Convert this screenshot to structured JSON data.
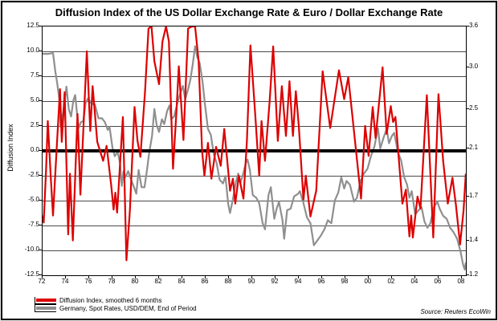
{
  "title": "Diffusion Index of the US Dollar Exchange Rate & Euro / Dollar Exchange Rate",
  "source_note": "Source: Reuters EcoWin",
  "left_axis": {
    "label": "Diffusion Index",
    "ticks": [
      "12.5",
      "10.0",
      "7.5",
      "5.0",
      "2.5",
      "0.0",
      "-2.5",
      "-5.0",
      "-7.5",
      "-10.0",
      "-12.5"
    ]
  },
  "right_axis": {
    "ticks": [
      "3.6",
      "3.0",
      "2.5",
      "2.1",
      "1.7",
      "1.4",
      "1.2"
    ],
    "values": [
      3.6,
      3.0,
      2.5,
      2.1,
      1.7,
      1.4,
      1.2
    ]
  },
  "x_axis": {
    "ticks": [
      "72",
      "74",
      "76",
      "78",
      "80",
      "82",
      "84",
      "86",
      "88",
      "90",
      "92",
      "94",
      "96",
      "98",
      "00",
      "02",
      "04",
      "06",
      "08"
    ],
    "years": [
      1972,
      1974,
      1976,
      1978,
      1980,
      1982,
      1984,
      1986,
      1988,
      1990,
      1992,
      1994,
      1996,
      1998,
      2000,
      2002,
      2004,
      2006,
      2008
    ]
  },
  "legend": [
    {
      "label": "Diffusion Index, smoothed 6 months",
      "color": "#dd0000"
    },
    {
      "label": "Germany, Spot Rates, USD/DEM, End of Period",
      "color": "#8f8f8f"
    }
  ],
  "colors": {
    "red_series": "#dd0000",
    "gray_series": "#8f8f8f",
    "gridline": "#4a4a4a",
    "zero_line": "#000000",
    "frame": "#000000"
  },
  "chart_data": {
    "type": "line",
    "title": "Diffusion Index of the US Dollar Exchange Rate & Euro / Dollar Exchange Rate",
    "xlim": [
      1972,
      2008.35
    ],
    "left_ylim": [
      -12.5,
      12.5
    ],
    "right_ylim": [
      1.2,
      3.6
    ],
    "right_scale": "log",
    "zero_line": true,
    "grid": "horizontal, every 2.5 units of left axis",
    "legend_position": "bottom-left",
    "series": [
      {
        "name": "Germany, Spot Rates, USD/DEM, End of Period",
        "axis": "right",
        "color": "#8f8f8f",
        "points": [
          [
            1972.0,
            3.19
          ],
          [
            1972.5,
            3.19
          ],
          [
            1972.9,
            3.2
          ],
          [
            1973.1,
            2.95
          ],
          [
            1973.25,
            2.81
          ],
          [
            1973.45,
            2.6
          ],
          [
            1973.55,
            2.31
          ],
          [
            1973.7,
            2.41
          ],
          [
            1973.9,
            2.58
          ],
          [
            1974.05,
            2.76
          ],
          [
            1974.25,
            2.5
          ],
          [
            1974.45,
            2.42
          ],
          [
            1974.65,
            2.6
          ],
          [
            1974.8,
            2.66
          ],
          [
            1974.95,
            2.46
          ],
          [
            1975.1,
            2.3
          ],
          [
            1975.3,
            2.36
          ],
          [
            1975.5,
            2.37
          ],
          [
            1975.7,
            2.57
          ],
          [
            1975.9,
            2.62
          ],
          [
            1976.2,
            2.56
          ],
          [
            1976.5,
            2.55
          ],
          [
            1976.8,
            2.4
          ],
          [
            1977.1,
            2.4
          ],
          [
            1977.35,
            2.36
          ],
          [
            1977.6,
            2.28
          ],
          [
            1977.75,
            2.31
          ],
          [
            1978.0,
            2.11
          ],
          [
            1978.2,
            2.03
          ],
          [
            1978.45,
            2.07
          ],
          [
            1978.65,
            1.97
          ],
          [
            1978.8,
            1.78
          ],
          [
            1978.95,
            1.9
          ],
          [
            1979.1,
            1.85
          ],
          [
            1979.35,
            1.9
          ],
          [
            1979.6,
            1.83
          ],
          [
            1979.85,
            1.77
          ],
          [
            1980.05,
            1.72
          ],
          [
            1980.25,
            1.91
          ],
          [
            1980.5,
            1.77
          ],
          [
            1980.75,
            1.77
          ],
          [
            1980.95,
            1.9
          ],
          [
            1981.15,
            2.06
          ],
          [
            1981.4,
            2.22
          ],
          [
            1981.6,
            2.5
          ],
          [
            1981.8,
            2.33
          ],
          [
            1982.0,
            2.26
          ],
          [
            1982.25,
            2.39
          ],
          [
            1982.45,
            2.34
          ],
          [
            1982.7,
            2.48
          ],
          [
            1982.9,
            2.54
          ],
          [
            1983.05,
            2.39
          ],
          [
            1983.3,
            2.42
          ],
          [
            1983.6,
            2.58
          ],
          [
            1983.85,
            2.69
          ],
          [
            1984.05,
            2.77
          ],
          [
            1984.25,
            2.61
          ],
          [
            1984.5,
            2.73
          ],
          [
            1984.7,
            2.85
          ],
          [
            1984.9,
            3.05
          ],
          [
            1985.1,
            3.3
          ],
          [
            1985.3,
            3.14
          ],
          [
            1985.5,
            3.06
          ],
          [
            1985.75,
            2.81
          ],
          [
            1985.95,
            2.55
          ],
          [
            1986.2,
            2.29
          ],
          [
            1986.45,
            2.23
          ],
          [
            1986.7,
            2.05
          ],
          [
            1986.95,
            1.97
          ],
          [
            1987.2,
            1.83
          ],
          [
            1987.5,
            1.8
          ],
          [
            1987.7,
            1.86
          ],
          [
            1987.95,
            1.64
          ],
          [
            1988.1,
            1.58
          ],
          [
            1988.35,
            1.68
          ],
          [
            1988.6,
            1.81
          ],
          [
            1988.8,
            1.88
          ],
          [
            1989.0,
            1.81
          ],
          [
            1989.2,
            1.87
          ],
          [
            1989.45,
            1.97
          ],
          [
            1989.6,
            2.0
          ],
          [
            1989.8,
            1.91
          ],
          [
            1990.05,
            1.71
          ],
          [
            1990.35,
            1.69
          ],
          [
            1990.6,
            1.65
          ],
          [
            1990.9,
            1.51
          ],
          [
            1991.1,
            1.47
          ],
          [
            1991.4,
            1.71
          ],
          [
            1991.6,
            1.77
          ],
          [
            1991.9,
            1.54
          ],
          [
            1992.1,
            1.61
          ],
          [
            1992.3,
            1.66
          ],
          [
            1992.6,
            1.53
          ],
          [
            1992.75,
            1.41
          ],
          [
            1993.0,
            1.6
          ],
          [
            1993.3,
            1.61
          ],
          [
            1993.6,
            1.7
          ],
          [
            1993.95,
            1.72
          ],
          [
            1994.1,
            1.74
          ],
          [
            1994.4,
            1.65
          ],
          [
            1994.7,
            1.55
          ],
          [
            1995.0,
            1.51
          ],
          [
            1995.3,
            1.37
          ],
          [
            1995.6,
            1.4
          ],
          [
            1995.9,
            1.43
          ],
          [
            1996.2,
            1.47
          ],
          [
            1996.5,
            1.53
          ],
          [
            1996.8,
            1.51
          ],
          [
            1997.1,
            1.67
          ],
          [
            1997.4,
            1.73
          ],
          [
            1997.65,
            1.85
          ],
          [
            1997.9,
            1.76
          ],
          [
            1998.1,
            1.82
          ],
          [
            1998.4,
            1.79
          ],
          [
            1998.75,
            1.66
          ],
          [
            1999.0,
            1.69
          ],
          [
            1999.3,
            1.82
          ],
          [
            1999.6,
            1.88
          ],
          [
            1999.9,
            1.92
          ],
          [
            2000.2,
            2.03
          ],
          [
            2000.5,
            2.12
          ],
          [
            2000.8,
            2.3
          ],
          [
            2001.0,
            2.1
          ],
          [
            2001.3,
            2.21
          ],
          [
            2001.55,
            2.29
          ],
          [
            2001.75,
            2.15
          ],
          [
            2002.0,
            2.22
          ],
          [
            2002.2,
            2.25
          ],
          [
            2002.5,
            2.07
          ],
          [
            2002.8,
            1.99
          ],
          [
            2003.05,
            1.85
          ],
          [
            2003.3,
            1.79
          ],
          [
            2003.5,
            1.69
          ],
          [
            2003.7,
            1.74
          ],
          [
            2004.0,
            1.57
          ],
          [
            2004.3,
            1.6
          ],
          [
            2004.55,
            1.62
          ],
          [
            2004.8,
            1.52
          ],
          [
            2005.05,
            1.48
          ],
          [
            2005.3,
            1.51
          ],
          [
            2005.6,
            1.62
          ],
          [
            2005.9,
            1.66
          ],
          [
            2006.1,
            1.61
          ],
          [
            2006.4,
            1.56
          ],
          [
            2006.7,
            1.54
          ],
          [
            2007.0,
            1.48
          ],
          [
            2007.3,
            1.45
          ],
          [
            2007.6,
            1.41
          ],
          [
            2007.9,
            1.33
          ],
          [
            2008.1,
            1.26
          ],
          [
            2008.25,
            1.23
          ],
          [
            2008.35,
            1.27
          ]
        ]
      },
      {
        "name": "Diffusion Index, smoothed 6 months",
        "axis": "left",
        "color": "#dd0000",
        "points": [
          [
            1972.0,
            -6.5
          ],
          [
            1972.1,
            -7.2
          ],
          [
            1972.3,
            -2.0
          ],
          [
            1972.45,
            3.0
          ],
          [
            1972.7,
            -2.5
          ],
          [
            1972.9,
            -6.5
          ],
          [
            1973.2,
            0.0
          ],
          [
            1973.5,
            6.2
          ],
          [
            1973.65,
            0.9
          ],
          [
            1973.9,
            5.9
          ],
          [
            1974.2,
            -8.4
          ],
          [
            1974.35,
            -2.3
          ],
          [
            1974.6,
            -9.0
          ],
          [
            1975.0,
            3.7
          ],
          [
            1975.25,
            -4.4
          ],
          [
            1975.5,
            2.0
          ],
          [
            1975.8,
            10.0
          ],
          [
            1976.1,
            2.0
          ],
          [
            1976.3,
            6.5
          ],
          [
            1976.7,
            0.9
          ],
          [
            1977.2,
            -1.0
          ],
          [
            1977.5,
            0.5
          ],
          [
            1977.9,
            -3.5
          ],
          [
            1978.1,
            -5.9
          ],
          [
            1978.25,
            -4.2
          ],
          [
            1978.4,
            -6.2
          ],
          [
            1978.9,
            3.4
          ],
          [
            1979.2,
            -11.0
          ],
          [
            1979.5,
            -6.0
          ],
          [
            1979.9,
            4.4
          ],
          [
            1980.15,
            1.0
          ],
          [
            1980.4,
            -0.6
          ],
          [
            1980.8,
            6.0
          ],
          [
            1981.1,
            12.3
          ],
          [
            1981.35,
            12.5
          ],
          [
            1981.6,
            9.0
          ],
          [
            1982.0,
            6.7
          ],
          [
            1982.3,
            11.0
          ],
          [
            1982.6,
            12.5
          ],
          [
            1982.85,
            11.0
          ],
          [
            1983.2,
            -1.8
          ],
          [
            1983.5,
            4.0
          ],
          [
            1983.7,
            8.5
          ],
          [
            1984.1,
            1.1
          ],
          [
            1984.5,
            12.3
          ],
          [
            1984.8,
            12.5
          ],
          [
            1985.1,
            12.5
          ],
          [
            1985.4,
            9.0
          ],
          [
            1985.7,
            0.0
          ],
          [
            1985.9,
            -2.5
          ],
          [
            1986.2,
            0.8
          ],
          [
            1986.5,
            -2.8
          ],
          [
            1986.9,
            0.4
          ],
          [
            1987.3,
            -1.5
          ],
          [
            1987.6,
            2.2
          ],
          [
            1987.9,
            -1.5
          ],
          [
            1988.1,
            -4.0
          ],
          [
            1988.35,
            -2.8
          ],
          [
            1988.55,
            -5.3
          ],
          [
            1988.85,
            -2.5
          ],
          [
            1989.25,
            -4.8
          ],
          [
            1989.55,
            1.0
          ],
          [
            1989.85,
            10.6
          ],
          [
            1990.3,
            3.0
          ],
          [
            1990.6,
            -2.5
          ],
          [
            1990.8,
            3.0
          ],
          [
            1991.1,
            -1.0
          ],
          [
            1991.5,
            5.0
          ],
          [
            1991.8,
            10.5
          ],
          [
            1992.2,
            1.0
          ],
          [
            1992.55,
            6.5
          ],
          [
            1992.9,
            1.5
          ],
          [
            1993.2,
            7.0
          ],
          [
            1993.5,
            1.5
          ],
          [
            1993.75,
            6.0
          ],
          [
            1994.0,
            2.5
          ],
          [
            1994.4,
            -4.9
          ],
          [
            1994.6,
            -2.5
          ],
          [
            1995.0,
            -6.6
          ],
          [
            1995.5,
            -4.0
          ],
          [
            1996.05,
            8.0
          ],
          [
            1996.7,
            2.3
          ],
          [
            1997.45,
            8.1
          ],
          [
            1997.9,
            5.2
          ],
          [
            1998.25,
            7.4
          ],
          [
            1998.6,
            3.6
          ],
          [
            1999.35,
            -4.8
          ],
          [
            1999.7,
            2.5
          ],
          [
            2000.0,
            -0.5
          ],
          [
            2000.35,
            4.4
          ],
          [
            2000.6,
            1.3
          ],
          [
            2001.2,
            8.4
          ],
          [
            2001.55,
            1.7
          ],
          [
            2001.9,
            4.5
          ],
          [
            2002.1,
            2.9
          ],
          [
            2002.3,
            3.4
          ],
          [
            2002.9,
            -5.3
          ],
          [
            2003.2,
            -3.9
          ],
          [
            2003.5,
            -8.6
          ],
          [
            2003.65,
            -6.5
          ],
          [
            2003.8,
            -8.7
          ],
          [
            2004.2,
            -4.6
          ],
          [
            2004.45,
            -5.8
          ],
          [
            2005.0,
            5.6
          ],
          [
            2005.55,
            -8.7
          ],
          [
            2006.0,
            5.7
          ],
          [
            2006.4,
            -1.0
          ],
          [
            2006.8,
            -5.3
          ],
          [
            2007.2,
            -2.7
          ],
          [
            2007.5,
            -5.5
          ],
          [
            2007.85,
            -9.4
          ],
          [
            2008.15,
            -6.0
          ],
          [
            2008.34,
            -2.3
          ]
        ]
      }
    ]
  }
}
